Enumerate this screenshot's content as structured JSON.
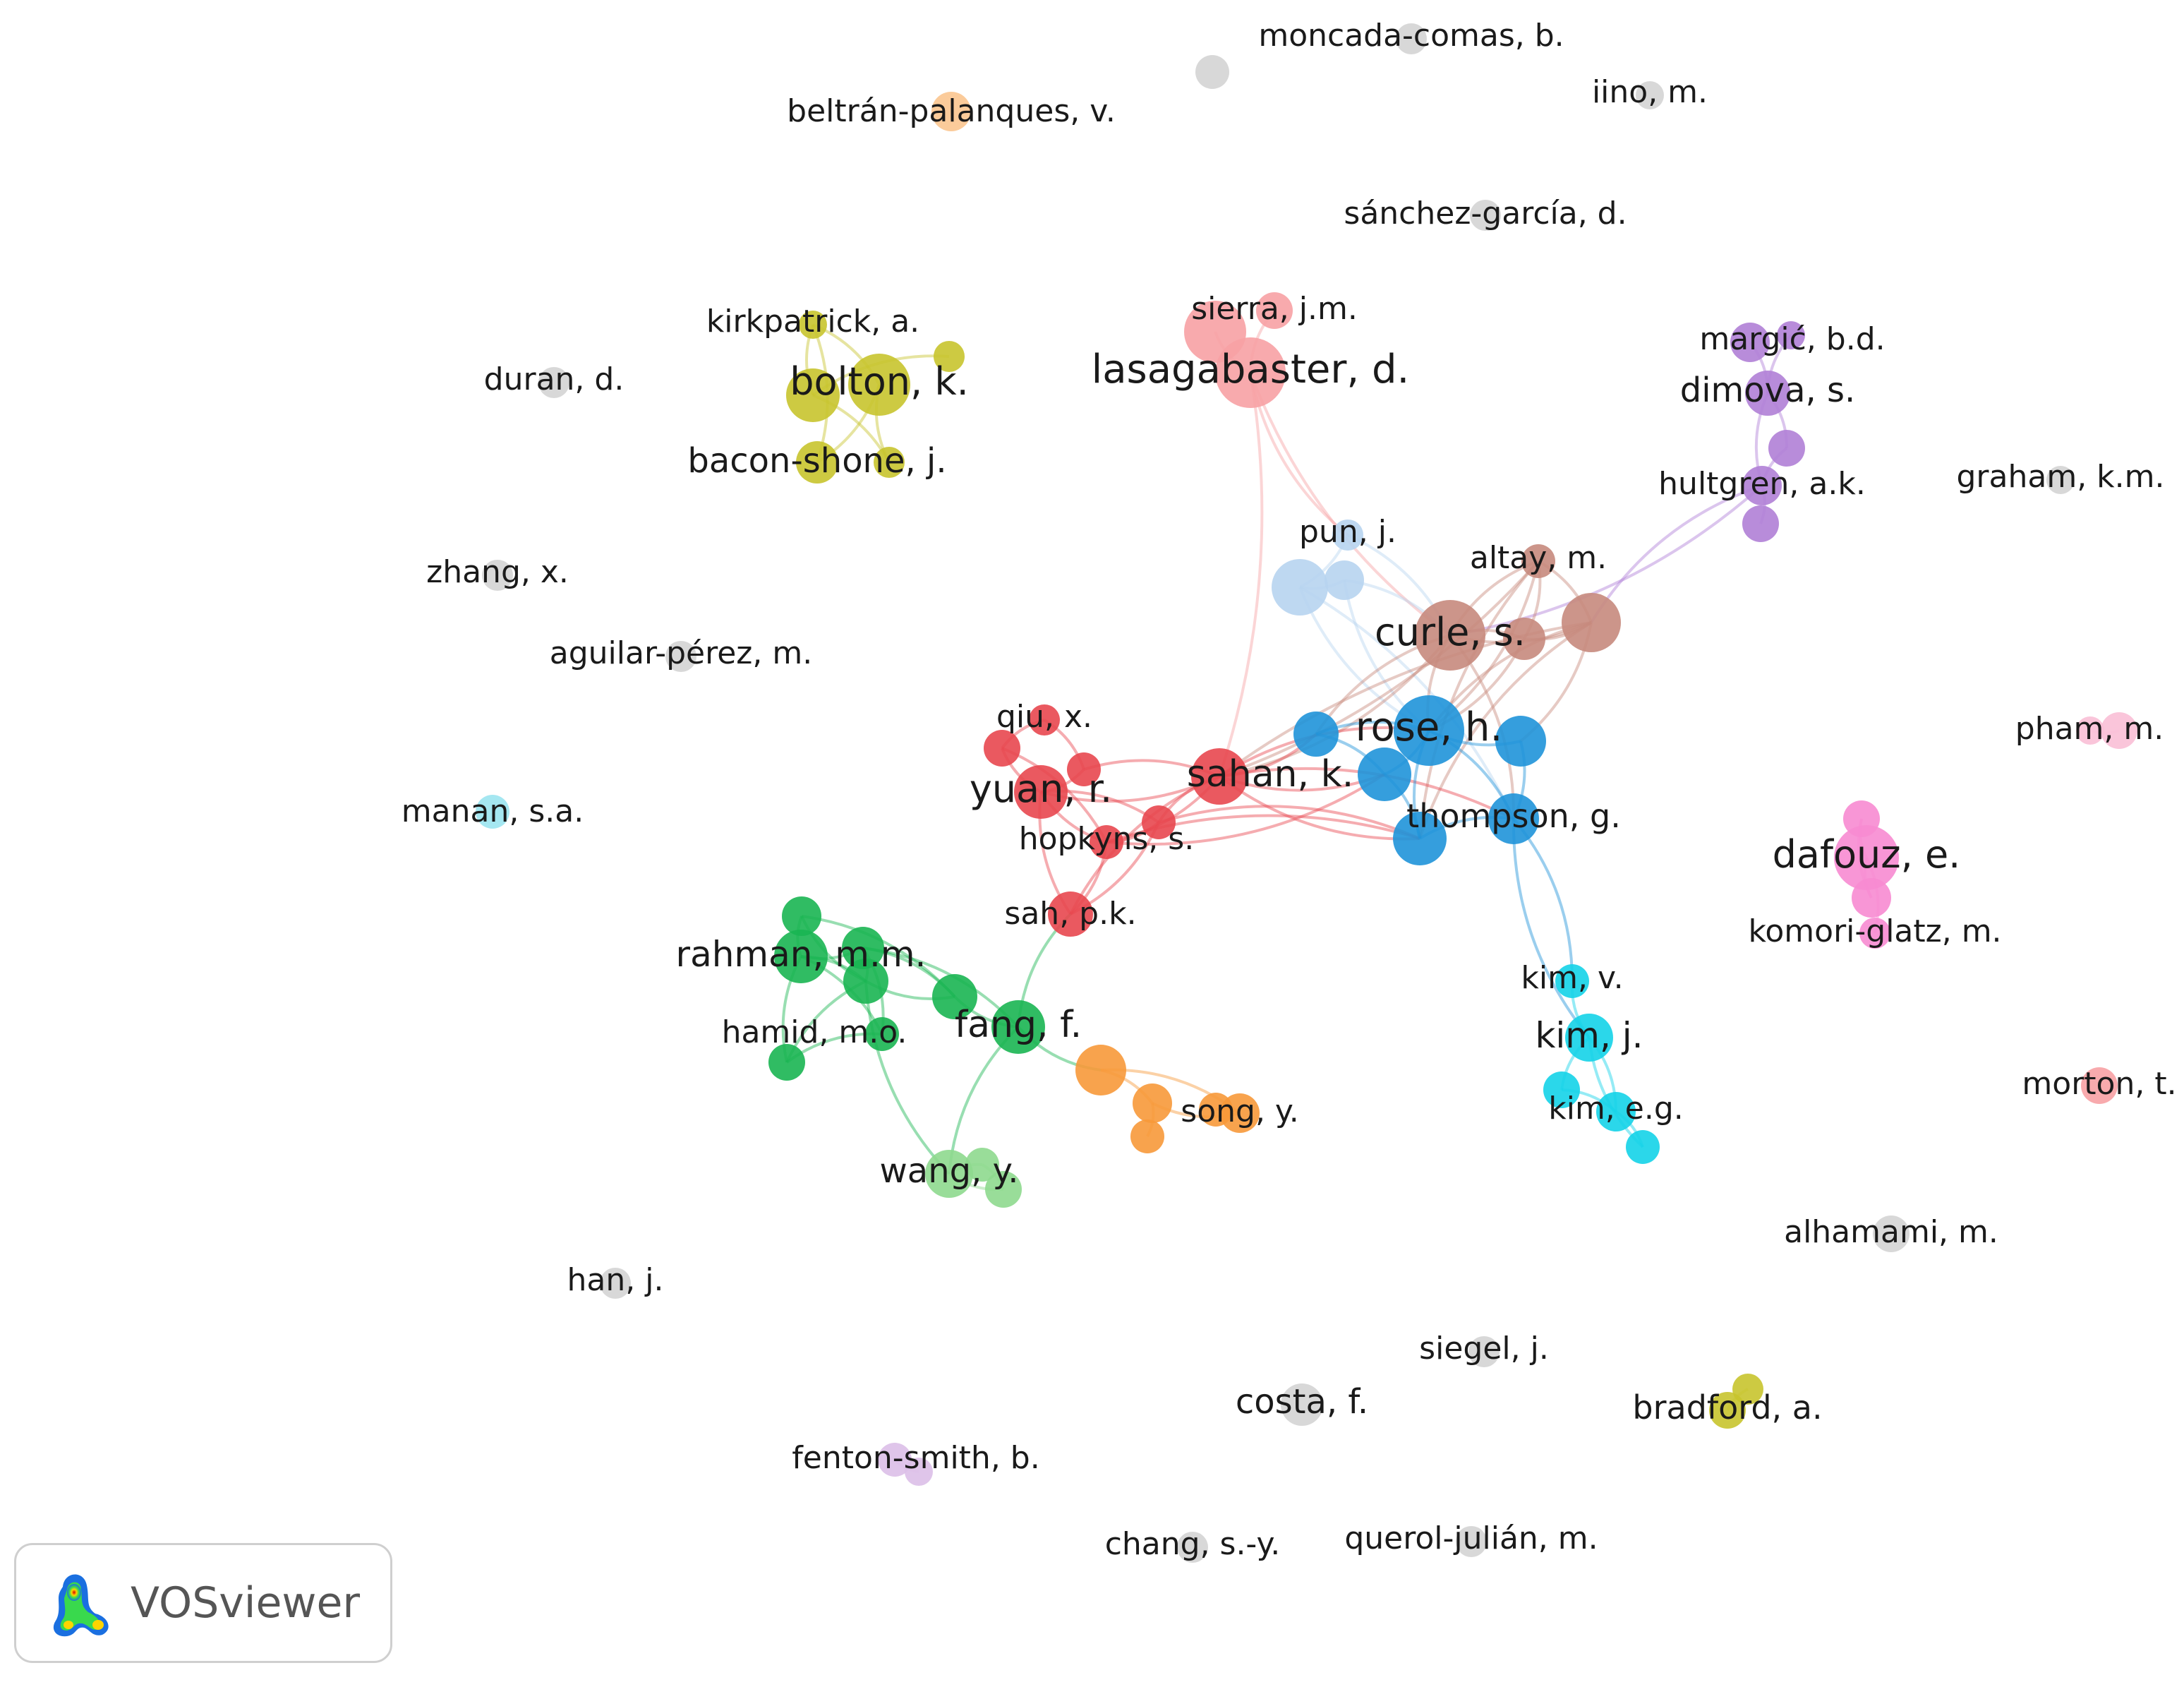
{
  "app_badge": {
    "label": "VOSviewer",
    "icon": "vosviewer-logo-icon"
  },
  "cluster_colors": {
    "red": "#e8474f",
    "light_red": "#f7a1a4",
    "blue": "#1f93d9",
    "light_blue": "#b7d4ef",
    "brown": "#c78a7d",
    "yellow": "#c8c42d",
    "green": "#1ab552",
    "light_green": "#8ed98e",
    "orange": "#f7993a",
    "light_orange": "#fbc58f",
    "cyan": "#14d3e8",
    "light_cyan": "#9be4f0",
    "purple": "#b07fd6",
    "light_purple": "#dbbfe8",
    "pink": "#f78bd1",
    "light_pink": "#f9bfd6",
    "gray": "#d6d6d6"
  },
  "authors": [
    {
      "id": "moncada",
      "label": "moncada-comas, b.",
      "cluster": "gray"
    },
    {
      "id": "gray_top",
      "label": "",
      "cluster": "gray"
    },
    {
      "id": "beltran",
      "label": "beltrán-palanques, v.",
      "cluster": "light_orange"
    },
    {
      "id": "iino",
      "label": "iino, m.",
      "cluster": "gray"
    },
    {
      "id": "sanchez",
      "label": "sánchez-garcía, d.",
      "cluster": "gray"
    },
    {
      "id": "sierra",
      "label": "sierra, j.m.",
      "cluster": "light_red"
    },
    {
      "id": "lasag",
      "label": "lasagabaster, d.",
      "cluster": "light_red"
    },
    {
      "id": "lasag_b",
      "label": "",
      "cluster": "light_red"
    },
    {
      "id": "kirk",
      "label": "kirkpatrick, a.",
      "cluster": "yellow"
    },
    {
      "id": "bolton",
      "label": "bolton, k.",
      "cluster": "yellow"
    },
    {
      "id": "bolton_b",
      "label": "",
      "cluster": "yellow"
    },
    {
      "id": "yel_r",
      "label": "",
      "cluster": "yellow"
    },
    {
      "id": "bacon",
      "label": "bacon-shone, j.",
      "cluster": "yellow"
    },
    {
      "id": "bacon_b",
      "label": "",
      "cluster": "yellow"
    },
    {
      "id": "duran",
      "label": "duran, d.",
      "cluster": "gray"
    },
    {
      "id": "margic",
      "label": "margić, b.d.",
      "cluster": "purple"
    },
    {
      "id": "margic_b",
      "label": "",
      "cluster": "purple"
    },
    {
      "id": "dimova",
      "label": "dimova, s.",
      "cluster": "purple"
    },
    {
      "id": "pur_m",
      "label": "",
      "cluster": "purple"
    },
    {
      "id": "hultgren",
      "label": "hultgren, a.k.",
      "cluster": "purple"
    },
    {
      "id": "pur_low",
      "label": "",
      "cluster": "purple"
    },
    {
      "id": "graham",
      "label": "graham, k.m.",
      "cluster": "gray"
    },
    {
      "id": "zhang",
      "label": "zhang, x.",
      "cluster": "gray"
    },
    {
      "id": "pun",
      "label": "pun, j.",
      "cluster": "light_blue"
    },
    {
      "id": "lb1",
      "label": "",
      "cluster": "light_blue"
    },
    {
      "id": "lb2",
      "label": "",
      "cluster": "light_blue"
    },
    {
      "id": "altay",
      "label": "altay, m.",
      "cluster": "brown"
    },
    {
      "id": "curle",
      "label": "curle, s.",
      "cluster": "brown"
    },
    {
      "id": "br2",
      "label": "",
      "cluster": "brown"
    },
    {
      "id": "br3",
      "label": "",
      "cluster": "brown"
    },
    {
      "id": "aguilar",
      "label": "aguilar-pérez, m.",
      "cluster": "gray"
    },
    {
      "id": "qiu",
      "label": "qiu, x.",
      "cluster": "red"
    },
    {
      "id": "r_a",
      "label": "",
      "cluster": "red"
    },
    {
      "id": "r_b",
      "label": "",
      "cluster": "red"
    },
    {
      "id": "yuan",
      "label": "yuan, r.",
      "cluster": "red"
    },
    {
      "id": "sahan",
      "label": "sahan, k.",
      "cluster": "red"
    },
    {
      "id": "r_c",
      "label": "",
      "cluster": "red"
    },
    {
      "id": "hopkyns",
      "label": "hopkyns, s.",
      "cluster": "red"
    },
    {
      "id": "sah",
      "label": "sah, p.k.",
      "cluster": "red"
    },
    {
      "id": "rose",
      "label": "rose, h.",
      "cluster": "blue"
    },
    {
      "id": "bl1",
      "label": "",
      "cluster": "blue"
    },
    {
      "id": "bl2",
      "label": "",
      "cluster": "blue"
    },
    {
      "id": "bl3",
      "label": "",
      "cluster": "blue"
    },
    {
      "id": "thompson",
      "label": "thompson, g.",
      "cluster": "blue"
    },
    {
      "id": "bl4",
      "label": "",
      "cluster": "blue"
    },
    {
      "id": "pham",
      "label": "pham, m.",
      "cluster": "light_pink"
    },
    {
      "id": "pham_b",
      "label": "",
      "cluster": "light_pink"
    },
    {
      "id": "manan",
      "label": "manan, s.a.",
      "cluster": "light_cyan"
    },
    {
      "id": "dafouz",
      "label": "dafouz, e.",
      "cluster": "pink"
    },
    {
      "id": "pk1",
      "label": "",
      "cluster": "pink"
    },
    {
      "id": "pk2",
      "label": "",
      "cluster": "pink"
    },
    {
      "id": "komori",
      "label": "komori-glatz, m.",
      "cluster": "pink"
    },
    {
      "id": "g1",
      "label": "",
      "cluster": "green"
    },
    {
      "id": "rahman",
      "label": "rahman, m.m.",
      "cluster": "green"
    },
    {
      "id": "g2",
      "label": "",
      "cluster": "green"
    },
    {
      "id": "g3",
      "label": "",
      "cluster": "green"
    },
    {
      "id": "hamid",
      "label": "hamid, m.o.",
      "cluster": "green"
    },
    {
      "id": "g4",
      "label": "",
      "cluster": "green"
    },
    {
      "id": "g5",
      "label": "",
      "cluster": "green"
    },
    {
      "id": "fang",
      "label": "fang, f.",
      "cluster": "green"
    },
    {
      "id": "kimv",
      "label": "kim, v.",
      "cluster": "cyan"
    },
    {
      "id": "kimj",
      "label": "kim, j.",
      "cluster": "cyan"
    },
    {
      "id": "c1",
      "label": "",
      "cluster": "cyan"
    },
    {
      "id": "kimeg",
      "label": "kim, e.g.",
      "cluster": "cyan"
    },
    {
      "id": "c2",
      "label": "",
      "cluster": "cyan"
    },
    {
      "id": "morton",
      "label": "morton, t.",
      "cluster": "light_red"
    },
    {
      "id": "o1",
      "label": "",
      "cluster": "orange"
    },
    {
      "id": "o2",
      "label": "",
      "cluster": "orange"
    },
    {
      "id": "song",
      "label": "song, y.",
      "cluster": "orange"
    },
    {
      "id": "o3",
      "label": "",
      "cluster": "orange"
    },
    {
      "id": "o4",
      "label": "",
      "cluster": "orange"
    },
    {
      "id": "wang",
      "label": "wang, y.",
      "cluster": "light_green"
    },
    {
      "id": "lg1",
      "label": "",
      "cluster": "light_green"
    },
    {
      "id": "lg2",
      "label": "",
      "cluster": "light_green"
    },
    {
      "id": "alhamami",
      "label": "alhamami, m.",
      "cluster": "gray"
    },
    {
      "id": "han",
      "label": "han, j.",
      "cluster": "gray"
    },
    {
      "id": "siegel",
      "label": "siegel, j.",
      "cluster": "gray"
    },
    {
      "id": "costa",
      "label": "costa, f.",
      "cluster": "gray"
    },
    {
      "id": "bradford",
      "label": "bradford, a.",
      "cluster": "yellow"
    },
    {
      "id": "bradford_b",
      "label": "",
      "cluster": "yellow"
    },
    {
      "id": "fenton",
      "label": "fenton-smith, b.",
      "cluster": "light_purple"
    },
    {
      "id": "fenton_b",
      "label": "",
      "cluster": "light_purple"
    },
    {
      "id": "chang",
      "label": "chang, s.-y.",
      "cluster": "gray"
    },
    {
      "id": "querol",
      "label": "querol-julián, m.",
      "cluster": "gray"
    }
  ],
  "links": [
    [
      "kirk",
      "bolton"
    ],
    [
      "kirk",
      "bolton_b"
    ],
    [
      "bolton",
      "bacon"
    ],
    [
      "bolton",
      "bacon_b"
    ],
    [
      "bolton_b",
      "bacon_b"
    ],
    [
      "yel_r",
      "bolton_b"
    ],
    [
      "kirk",
      "bacon"
    ],
    [
      "sierra",
      "lasag"
    ],
    [
      "lasag",
      "lasag_b"
    ],
    [
      "lasag",
      "pun"
    ],
    [
      "lasag",
      "sahan"
    ],
    [
      "lasag",
      "curle"
    ],
    [
      "margic",
      "dimova"
    ],
    [
      "margic_b",
      "dimova"
    ],
    [
      "dimova",
      "pur_m"
    ],
    [
      "dimova",
      "hultgren"
    ],
    [
      "hultgren",
      "pur_low"
    ],
    [
      "pur_m",
      "hultgren"
    ],
    [
      "hultgren",
      "curle"
    ],
    [
      "hultgren",
      "br3"
    ],
    [
      "pun",
      "lb1"
    ],
    [
      "lb1",
      "lb2"
    ],
    [
      "lb2",
      "curle"
    ],
    [
      "lb1",
      "rose"
    ],
    [
      "lb1",
      "thompson"
    ],
    [
      "lb2",
      "rose"
    ],
    [
      "pun",
      "curle"
    ],
    [
      "altay",
      "curle"
    ],
    [
      "curle",
      "br2"
    ],
    [
      "curle",
      "br3"
    ],
    [
      "altay",
      "br2"
    ],
    [
      "br2",
      "br3"
    ],
    [
      "altay",
      "br3"
    ],
    [
      "curle",
      "rose"
    ],
    [
      "curle",
      "thompson"
    ],
    [
      "curle",
      "bl1"
    ],
    [
      "br2",
      "rose"
    ],
    [
      "br3",
      "rose"
    ],
    [
      "br3",
      "bl3"
    ],
    [
      "br3",
      "bl4"
    ],
    [
      "curle",
      "sahan"
    ],
    [
      "br3",
      "sahan"
    ],
    [
      "altay",
      "sahan"
    ],
    [
      "altay",
      "bl4"
    ],
    [
      "altay",
      "rose"
    ],
    [
      "qiu",
      "r_a"
    ],
    [
      "qiu",
      "r_b"
    ],
    [
      "r_a",
      "yuan"
    ],
    [
      "r_b",
      "yuan"
    ],
    [
      "yuan",
      "hopkyns"
    ],
    [
      "yuan",
      "r_c"
    ],
    [
      "yuan",
      "sahan"
    ],
    [
      "r_b",
      "sahan"
    ],
    [
      "hopkyns",
      "r_c"
    ],
    [
      "r_c",
      "sahan"
    ],
    [
      "hopkyns",
      "sahan"
    ],
    [
      "sah",
      "yuan"
    ],
    [
      "sah",
      "hopkyns"
    ],
    [
      "sah",
      "sahan"
    ],
    [
      "sah",
      "r_c"
    ],
    [
      "r_a",
      "hopkyns"
    ],
    [
      "sahan",
      "bl1"
    ],
    [
      "sahan",
      "rose"
    ],
    [
      "sahan",
      "bl2"
    ],
    [
      "sahan",
      "thompson"
    ],
    [
      "hopkyns",
      "bl2"
    ],
    [
      "hopkyns",
      "bl4"
    ],
    [
      "sahan",
      "bl4"
    ],
    [
      "r_c",
      "bl4"
    ],
    [
      "rose",
      "bl1"
    ],
    [
      "rose",
      "bl2"
    ],
    [
      "rose",
      "bl3"
    ],
    [
      "rose",
      "thompson"
    ],
    [
      "rose",
      "bl4"
    ],
    [
      "bl2",
      "bl4"
    ],
    [
      "thompson",
      "bl3"
    ],
    [
      "bl1",
      "bl2"
    ],
    [
      "thompson",
      "bl4"
    ],
    [
      "thompson",
      "kimv"
    ],
    [
      "thompson",
      "kimj"
    ],
    [
      "kimj",
      "kimv"
    ],
    [
      "kimj",
      "c1"
    ],
    [
      "kimj",
      "kimeg"
    ],
    [
      "kimeg",
      "c1"
    ],
    [
      "kimeg",
      "c2"
    ],
    [
      "kimj",
      "c2"
    ],
    [
      "dafouz",
      "pk1"
    ],
    [
      "dafouz",
      "pk2"
    ],
    [
      "dafouz",
      "komori"
    ],
    [
      "pk1",
      "pk2"
    ],
    [
      "pham",
      "pham_b"
    ],
    [
      "g1",
      "rahman"
    ],
    [
      "rahman",
      "g2"
    ],
    [
      "rahman",
      "g3"
    ],
    [
      "rahman",
      "hamid"
    ],
    [
      "g2",
      "g3"
    ],
    [
      "g3",
      "g4"
    ],
    [
      "hamid",
      "g5"
    ],
    [
      "g5",
      "g2"
    ],
    [
      "rahman",
      "g5"
    ],
    [
      "g1",
      "g4"
    ],
    [
      "g4",
      "fang"
    ],
    [
      "g3",
      "fang"
    ],
    [
      "hamid",
      "g3"
    ],
    [
      "g4",
      "g2"
    ],
    [
      "g1",
      "g2"
    ],
    [
      "fang",
      "sah"
    ],
    [
      "fang",
      "o1"
    ],
    [
      "o1",
      "o2"
    ],
    [
      "o2",
      "song"
    ],
    [
      "o2",
      "o4"
    ],
    [
      "song",
      "o3"
    ],
    [
      "o1",
      "song"
    ],
    [
      "fang",
      "wang"
    ],
    [
      "wang",
      "lg1"
    ],
    [
      "wang",
      "lg2"
    ],
    [
      "lg1",
      "lg2"
    ],
    [
      "g2",
      "wang"
    ],
    [
      "bradford",
      "bradford_b"
    ],
    [
      "fenton",
      "fenton_b"
    ]
  ]
}
